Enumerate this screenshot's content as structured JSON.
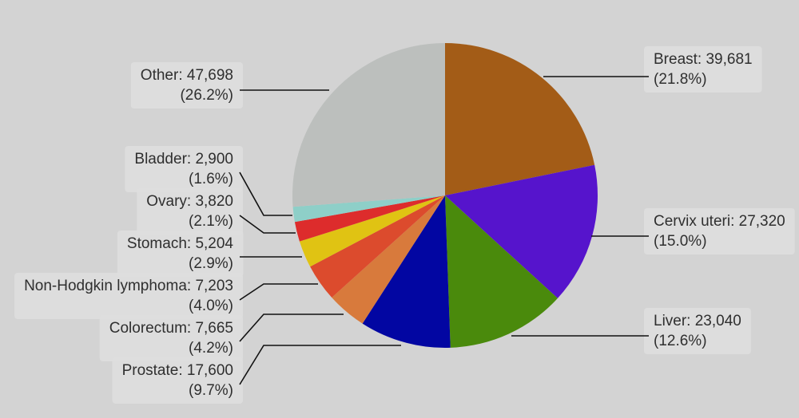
{
  "chart_data": {
    "type": "pie",
    "title": "",
    "slices": [
      {
        "label": "Breast",
        "value": 39681,
        "value_text": "39,681",
        "percent_text": "(21.8%)",
        "color": "#a35c17"
      },
      {
        "label": "Cervix uteri",
        "value": 27320,
        "value_text": "27,320",
        "percent_text": "(15.0%)",
        "color": "#5614cc"
      },
      {
        "label": "Liver",
        "value": 23040,
        "value_text": "23,040",
        "percent_text": "(12.6%)",
        "color": "#4a8a0c"
      },
      {
        "label": "Prostate",
        "value": 17600,
        "value_text": "17,600",
        "percent_text": "(9.7%)",
        "color": "#0206a2"
      },
      {
        "label": "Colorectum",
        "value": 7665,
        "value_text": "7,665",
        "percent_text": "(4.2%)",
        "color": "#d87a3c"
      },
      {
        "label": "Non-Hodgkin lymphoma",
        "value": 7203,
        "value_text": "7,203",
        "percent_text": "(4.0%)",
        "color": "#dc4b2d"
      },
      {
        "label": "Stomach",
        "value": 5204,
        "value_text": "5,204",
        "percent_text": "(2.9%)",
        "color": "#e0c313"
      },
      {
        "label": "Ovary",
        "value": 3820,
        "value_text": "3,820",
        "percent_text": "(2.1%)",
        "color": "#dd2c2c"
      },
      {
        "label": "Bladder",
        "value": 2900,
        "value_text": "2,900",
        "percent_text": "(1.6%)",
        "color": "#8ecfc8"
      },
      {
        "label": "Other",
        "value": 47698,
        "value_text": "47,698",
        "percent_text": "(26.2%)",
        "color": "#bcbfbd"
      }
    ]
  }
}
